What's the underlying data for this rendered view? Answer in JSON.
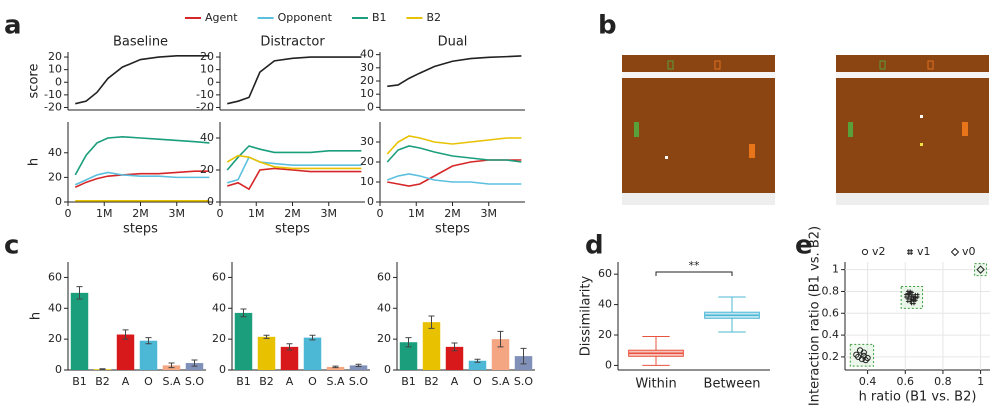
{
  "panels": [
    "a",
    "b",
    "c",
    "d",
    "e"
  ],
  "legend": [
    {
      "name": "Agent",
      "color": "#d62728"
    },
    {
      "name": "Opponent",
      "color": "#5bc0de"
    },
    {
      "name": "B1",
      "color": "#1a9e7c"
    },
    {
      "name": "B2",
      "color": "#e8c200"
    }
  ],
  "chart_data": [
    {
      "type": "line",
      "title": "Baseline",
      "ylabel": "score",
      "xlim": [
        0,
        4000000
      ],
      "ylim": [
        -22,
        24
      ],
      "yticks": [
        -20,
        -10,
        0,
        10,
        20
      ],
      "x": [
        200000,
        500000,
        800000,
        1100000,
        1500000,
        2000000,
        2500000,
        3000000,
        3500000,
        3900000
      ],
      "series": [
        {
          "color": "#222222",
          "values": [
            -17,
            -15,
            -8,
            3,
            12,
            18,
            20,
            21,
            21,
            21
          ]
        }
      ]
    },
    {
      "type": "line",
      "title": "Distractor",
      "xlim": [
        0,
        4000000
      ],
      "ylim": [
        -22,
        24
      ],
      "yticks": [
        -20,
        -10,
        0,
        10,
        20
      ],
      "x": [
        200000,
        500000,
        800000,
        1100000,
        1500000,
        2000000,
        2500000,
        3000000,
        3500000,
        3900000
      ],
      "series": [
        {
          "color": "#222222",
          "values": [
            -17,
            -15,
            -12,
            8,
            17,
            19,
            20,
            20,
            20,
            20
          ]
        }
      ]
    },
    {
      "type": "line",
      "title": "Dual",
      "xlim": [
        0,
        4000000
      ],
      "ylim": [
        -2,
        42
      ],
      "yticks": [
        0,
        10,
        20,
        30,
        40
      ],
      "x": [
        200000,
        500000,
        800000,
        1100000,
        1500000,
        2000000,
        2500000,
        3000000,
        3500000,
        3900000
      ],
      "series": [
        {
          "color": "#222222",
          "values": [
            16,
            17,
            22,
            26,
            31,
            35,
            37,
            38,
            38.5,
            39
          ]
        }
      ]
    },
    {
      "type": "line",
      "ylabel": "h",
      "xlabel": "steps",
      "xlim": [
        0,
        4000000
      ],
      "ylim": [
        0,
        65
      ],
      "yticks": [
        0,
        20,
        40
      ],
      "xticks": [
        0,
        {
          "value": 1000000,
          "label": "1M"
        },
        {
          "value": 2000000,
          "label": "2M"
        },
        {
          "value": 3000000,
          "label": "3M"
        }
      ],
      "x": [
        200000,
        500000,
        800000,
        1100000,
        1500000,
        2000000,
        2500000,
        3000000,
        3500000,
        3900000
      ],
      "series": [
        {
          "values": [
            12,
            16,
            19,
            21,
            22,
            23,
            23,
            24,
            25,
            25
          ]
        },
        {
          "values": [
            14,
            18,
            22,
            24,
            22,
            21,
            21,
            20,
            20,
            20
          ]
        },
        {
          "values": [
            22,
            38,
            48,
            52,
            53,
            52,
            51,
            50,
            49,
            48
          ]
        },
        {
          "values": [
            1,
            1,
            1,
            1,
            1,
            1,
            1,
            1,
            1,
            1
          ]
        }
      ]
    },
    {
      "type": "line",
      "xlabel": "steps",
      "xlim": [
        0,
        4000000
      ],
      "ylim": [
        0,
        50
      ],
      "yticks": [
        0,
        20,
        40
      ],
      "xticks": [
        0,
        {
          "value": 1000000,
          "label": "1M"
        },
        {
          "value": 2000000,
          "label": "2M"
        },
        {
          "value": 3000000,
          "label": "3M"
        }
      ],
      "x": [
        200000,
        500000,
        800000,
        1100000,
        1500000,
        2000000,
        2500000,
        3000000,
        3500000,
        3900000
      ],
      "series": [
        {
          "values": [
            10,
            12,
            8,
            20,
            21,
            20,
            19,
            19,
            19,
            19
          ]
        },
        {
          "values": [
            12,
            14,
            28,
            25,
            24,
            23,
            23,
            23,
            23,
            23
          ]
        },
        {
          "values": [
            20,
            28,
            35,
            33,
            31,
            31,
            31,
            32,
            32,
            32
          ]
        },
        {
          "values": [
            25,
            29,
            28,
            25,
            22,
            21,
            21,
            21,
            21,
            21
          ]
        }
      ]
    },
    {
      "type": "line",
      "xlabel": "steps",
      "xlim": [
        0,
        4000000
      ],
      "ylim": [
        0,
        40
      ],
      "yticks": [
        0,
        10,
        20,
        30
      ],
      "xticks": [
        0,
        {
          "value": 1000000,
          "label": "1M"
        },
        {
          "value": 2000000,
          "label": "2M"
        },
        {
          "value": 3000000,
          "label": "3M"
        }
      ],
      "x": [
        200000,
        500000,
        800000,
        1100000,
        1500000,
        2000000,
        2500000,
        3000000,
        3500000,
        3900000
      ],
      "series": [
        {
          "values": [
            10,
            9,
            8,
            9,
            13,
            18,
            20,
            21,
            21,
            21
          ]
        },
        {
          "values": [
            11,
            13,
            14,
            13,
            11,
            10,
            10,
            9,
            9,
            9
          ]
        },
        {
          "values": [
            20,
            26,
            28,
            27,
            25,
            23,
            22,
            21,
            21,
            20
          ]
        },
        {
          "values": [
            24,
            30,
            33,
            32,
            30,
            29,
            30,
            31,
            32,
            32
          ]
        }
      ]
    },
    {
      "type": "bar",
      "ylabel": "h",
      "ylim": [
        0,
        70
      ],
      "yticks": [
        0,
        20,
        40,
        60
      ],
      "categories": [
        "B1",
        "B2",
        "A",
        "O",
        "S.A",
        "S.O"
      ],
      "values": [
        50,
        0.5,
        23,
        19,
        3,
        4.5
      ],
      "errors": [
        4,
        0.3,
        3,
        2,
        1.5,
        2
      ],
      "colors": [
        "#1a9e7c",
        "#e8c200",
        "#d7191c",
        "#4cb8d6",
        "#f4a582",
        "#8090b8"
      ]
    },
    {
      "type": "bar",
      "ylim": [
        0,
        70
      ],
      "yticks": [
        0,
        20,
        40,
        60
      ],
      "categories": [
        "B1",
        "B2",
        "A",
        "O",
        "S.A",
        "S.O"
      ],
      "values": [
        37,
        21.5,
        15,
        21,
        2,
        3
      ],
      "errors": [
        2.5,
        1,
        2,
        1.5,
        0.5,
        0.7
      ],
      "colors": [
        "#1a9e7c",
        "#e8c200",
        "#d7191c",
        "#4cb8d6",
        "#f4a582",
        "#8090b8"
      ]
    },
    {
      "type": "bar",
      "ylim": [
        0,
        70
      ],
      "yticks": [
        0,
        20,
        40,
        60
      ],
      "categories": [
        "B1",
        "B2",
        "A",
        "O",
        "S.A",
        "S.O"
      ],
      "values": [
        18,
        31,
        15,
        6,
        20,
        9
      ],
      "errors": [
        3,
        4,
        2.5,
        1,
        5,
        5
      ],
      "colors": [
        "#1a9e7c",
        "#e8c200",
        "#d7191c",
        "#4cb8d6",
        "#f4a582",
        "#8090b8"
      ]
    },
    {
      "type": "box",
      "ylabel": "Dissimilarity",
      "ylim": [
        -3,
        68
      ],
      "yticks": [
        0,
        20,
        40,
        60
      ],
      "annotation": "**",
      "categories": [
        "Within",
        "Between"
      ],
      "colors": [
        "#e8533f",
        "#4cb8d6"
      ],
      "boxes": [
        {
          "min": 0,
          "q1": 6,
          "median": 8,
          "q3": 10,
          "max": 19
        },
        {
          "min": 22,
          "q1": 31,
          "median": 33,
          "q3": 35,
          "max": 45
        }
      ]
    },
    {
      "type": "scatter",
      "xlabel": "h ratio (B1 vs. B2)",
      "ylabel": "Interaction ratio (B1 vs. B2)",
      "xlim": [
        0.28,
        1.05
      ],
      "ylim": [
        0.08,
        1.07
      ],
      "xticks": [
        0.4,
        0.6,
        0.8,
        1
      ],
      "yticks": [
        0.2,
        0.4,
        0.6,
        0.8,
        1
      ],
      "grid": true,
      "series": [
        {
          "name": "v2",
          "marker": "o",
          "x": [
            0.34,
            0.36,
            0.37,
            0.38,
            0.39,
            0.35,
            0.38,
            0.4
          ],
          "y": [
            0.22,
            0.26,
            0.18,
            0.21,
            0.17,
            0.2,
            0.24,
            0.19
          ]
        },
        {
          "name": "v1",
          "marker": "#",
          "x": [
            0.61,
            0.62,
            0.63,
            0.64,
            0.65,
            0.62,
            0.64,
            0.66
          ],
          "y": [
            0.76,
            0.72,
            0.78,
            0.74,
            0.73,
            0.79,
            0.7,
            0.76
          ]
        },
        {
          "name": "v0",
          "marker": "D",
          "x": [
            1.0
          ],
          "y": [
            1.0
          ]
        }
      ]
    }
  ]
}
